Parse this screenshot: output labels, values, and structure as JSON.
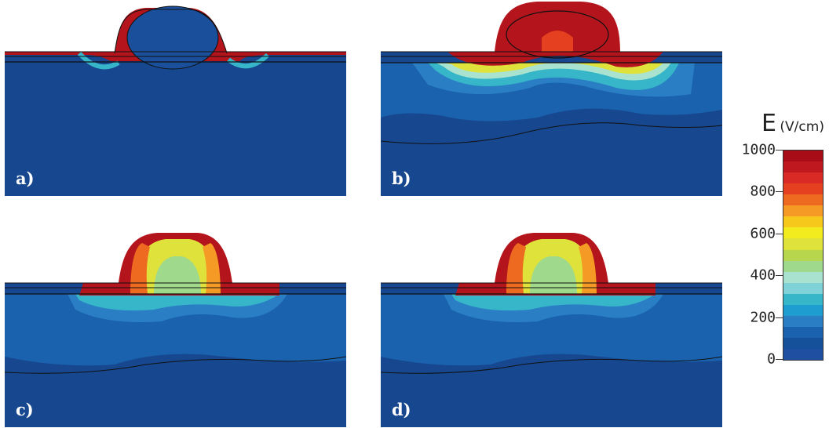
{
  "panels": [
    {
      "id": "a",
      "label": "a)"
    },
    {
      "id": "b",
      "label": "b)"
    },
    {
      "id": "c",
      "label": "c)"
    },
    {
      "id": "d",
      "label": "d)"
    }
  ],
  "legend": {
    "symbol": "E",
    "unit": "(V/cm)",
    "ticks": [
      "0",
      "200",
      "400",
      "600",
      "800",
      "1000"
    ],
    "colors": [
      "#1f4fa0",
      "#15509a",
      "#1a62ad",
      "#2a7fc4",
      "#1e9dd0",
      "#37b6c9",
      "#7fd3d8",
      "#a9e3cf",
      "#9fd98c",
      "#b7d64d",
      "#dfe23a",
      "#f2ec1f",
      "#f7c81c",
      "#f59a25",
      "#ee6a20",
      "#e5401f",
      "#d92a26",
      "#c0181f",
      "#a80c16"
    ]
  },
  "colors": {
    "background": "#16478f",
    "cap": "#b4141c",
    "contour": "#111111"
  }
}
